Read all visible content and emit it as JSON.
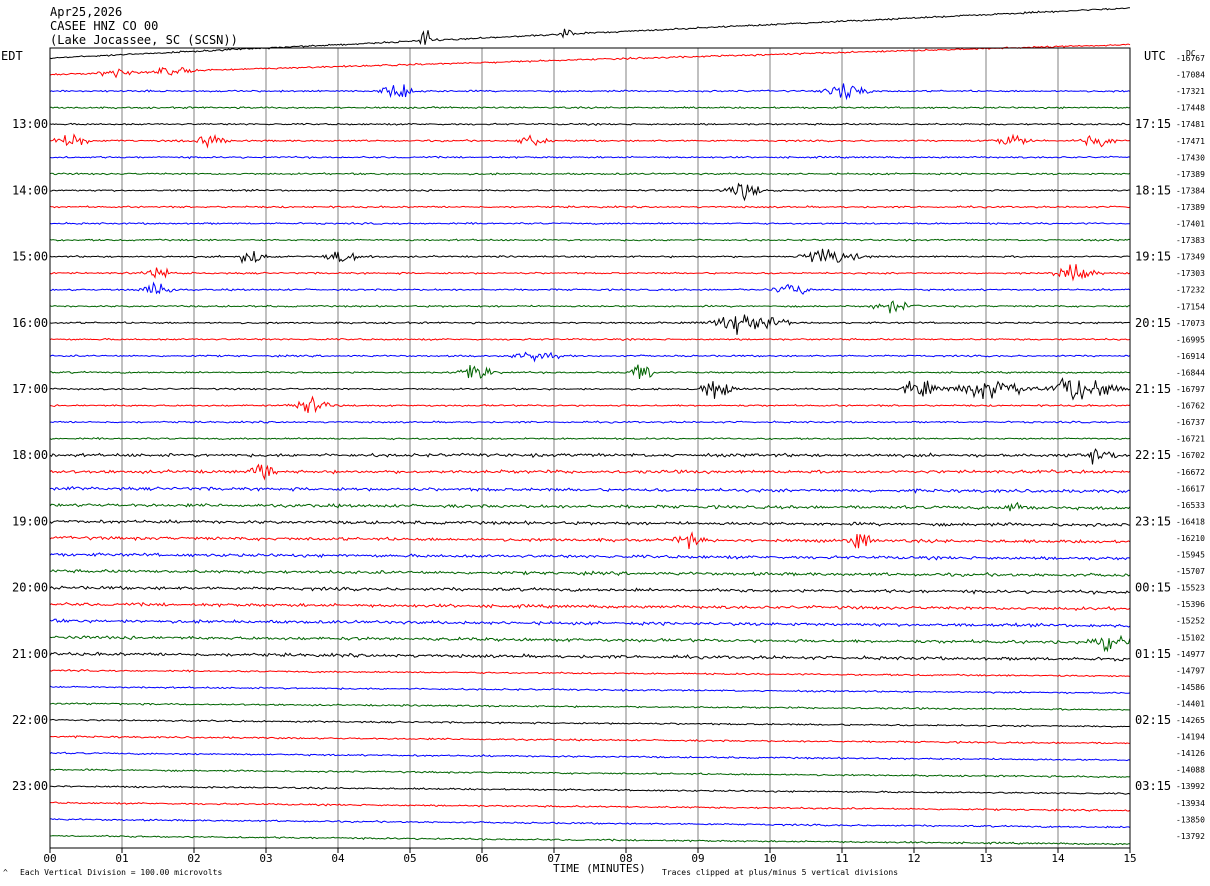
{
  "header": {
    "date": "Apr25,2026",
    "channel": "CASEE HNZ CO 00",
    "location": "(Lake Jocassee, SC (SCSN))"
  },
  "left_tz": "EDT",
  "right_tz": "UTC",
  "dc_label": "DC",
  "footer": {
    "scale_note": "Each Vertical Division =  100.00 microvolts",
    "xlabel": "TIME (MINUTES)",
    "clip_note": "Traces clipped at plus/minus 5 vertical divisions",
    "corner_mark": "^"
  },
  "chart_data": {
    "type": "line",
    "title": "CASEE HNZ CO 00",
    "xlabel": "TIME (MINUTES)",
    "ylabel": "",
    "x_range": [
      0,
      15
    ],
    "x_ticks": [
      "00",
      "01",
      "02",
      "03",
      "04",
      "05",
      "06",
      "07",
      "08",
      "09",
      "10",
      "11",
      "12",
      "13",
      "14",
      "15"
    ],
    "grid": true,
    "trace_count": 48,
    "trace_colors": [
      "#000000",
      "#ff0000",
      "#0000ff",
      "#006400"
    ],
    "left_hour_labels": [
      "13:00",
      "14:00",
      "15:00",
      "16:00",
      "17:00",
      "18:00",
      "19:00",
      "20:00",
      "21:00",
      "22:00",
      "23:00"
    ],
    "right_hour_labels": [
      "17:15",
      "18:15",
      "19:15",
      "20:15",
      "21:15",
      "22:15",
      "23:15",
      "00:15",
      "01:15",
      "02:15",
      "03:15"
    ],
    "dc_offsets": [
      "-16767",
      "-17084",
      "-17321",
      "-17448",
      "-17481",
      "-17471",
      "-17430",
      "-17389",
      "-17384",
      "-17389",
      "-17401",
      "-17383",
      "-17349",
      "-17303",
      "-17232",
      "-17154",
      "-17073",
      "-16995",
      "-16914",
      "-16844",
      "-16797",
      "-16762",
      "-16737",
      "-16721",
      "-16702",
      "-16672",
      "-16617",
      "-16533",
      "-16418",
      "-16210",
      "-15945",
      "-15707",
      "-15523",
      "-15396",
      "-15252",
      "-15102",
      "-14977",
      "-14797",
      "-14586",
      "-14401",
      "-14265",
      "-14194",
      "-14126",
      "-14088",
      "-13992",
      "-13934",
      "-13850",
      "-13792"
    ],
    "events": [
      {
        "trace": 0,
        "minute": 5.25,
        "amp": 14,
        "dur": 0.15
      },
      {
        "trace": 0,
        "minute": 7.2,
        "amp": 10,
        "dur": 0.15
      },
      {
        "trace": 1,
        "minute": 0.95,
        "amp": 9,
        "dur": 0.35
      },
      {
        "trace": 1,
        "minute": 1.7,
        "amp": 9,
        "dur": 0.4
      },
      {
        "trace": 2,
        "minute": 4.8,
        "amp": 11,
        "dur": 0.35
      },
      {
        "trace": 2,
        "minute": 11.05,
        "amp": 15,
        "dur": 0.4
      },
      {
        "trace": 5,
        "minute": 0.3,
        "amp": 11,
        "dur": 0.4
      },
      {
        "trace": 5,
        "minute": 2.2,
        "amp": 11,
        "dur": 0.35
      },
      {
        "trace": 5,
        "minute": 6.7,
        "amp": 10,
        "dur": 0.3
      },
      {
        "trace": 5,
        "minute": 13.4,
        "amp": 11,
        "dur": 0.35
      },
      {
        "trace": 5,
        "minute": 14.55,
        "amp": 12,
        "dur": 0.3
      },
      {
        "trace": 8,
        "minute": 9.65,
        "amp": 12,
        "dur": 0.35
      },
      {
        "trace": 12,
        "minute": 2.8,
        "amp": 14,
        "dur": 0.25
      },
      {
        "trace": 12,
        "minute": 4.1,
        "amp": 10,
        "dur": 0.4
      },
      {
        "trace": 12,
        "minute": 10.85,
        "amp": 17,
        "dur": 0.5
      },
      {
        "trace": 13,
        "minute": 1.55,
        "amp": 8,
        "dur": 0.3
      },
      {
        "trace": 13,
        "minute": 14.25,
        "amp": 12,
        "dur": 0.4
      },
      {
        "trace": 14,
        "minute": 1.5,
        "amp": 10,
        "dur": 0.35
      },
      {
        "trace": 14,
        "minute": 10.3,
        "amp": 8,
        "dur": 0.4
      },
      {
        "trace": 15,
        "minute": 11.7,
        "amp": 9,
        "dur": 0.4
      },
      {
        "trace": 16,
        "minute": 9.7,
        "amp": 16,
        "dur": 0.7
      },
      {
        "trace": 18,
        "minute": 6.7,
        "amp": 8,
        "dur": 0.5
      },
      {
        "trace": 19,
        "minute": 5.9,
        "amp": 13,
        "dur": 0.35
      },
      {
        "trace": 19,
        "minute": 8.25,
        "amp": 13,
        "dur": 0.25
      },
      {
        "trace": 20,
        "minute": 9.25,
        "amp": 20,
        "dur": 0.3
      },
      {
        "trace": 20,
        "minute": 12.1,
        "amp": 14,
        "dur": 0.4
      },
      {
        "trace": 20,
        "minute": 13.1,
        "amp": 18,
        "dur": 0.7
      },
      {
        "trace": 20,
        "minute": 14.35,
        "amp": 22,
        "dur": 0.6
      },
      {
        "trace": 21,
        "minute": 3.6,
        "amp": 15,
        "dur": 0.35
      },
      {
        "trace": 24,
        "minute": 14.6,
        "amp": 12,
        "dur": 0.35
      },
      {
        "trace": 25,
        "minute": 2.95,
        "amp": 14,
        "dur": 0.25
      },
      {
        "trace": 27,
        "minute": 13.45,
        "amp": 12,
        "dur": 0.25
      },
      {
        "trace": 29,
        "minute": 8.85,
        "amp": 11,
        "dur": 0.3
      },
      {
        "trace": 29,
        "minute": 11.25,
        "amp": 12,
        "dur": 0.25
      },
      {
        "trace": 35,
        "minute": 14.8,
        "amp": 16,
        "dur": 0.5
      }
    ]
  }
}
